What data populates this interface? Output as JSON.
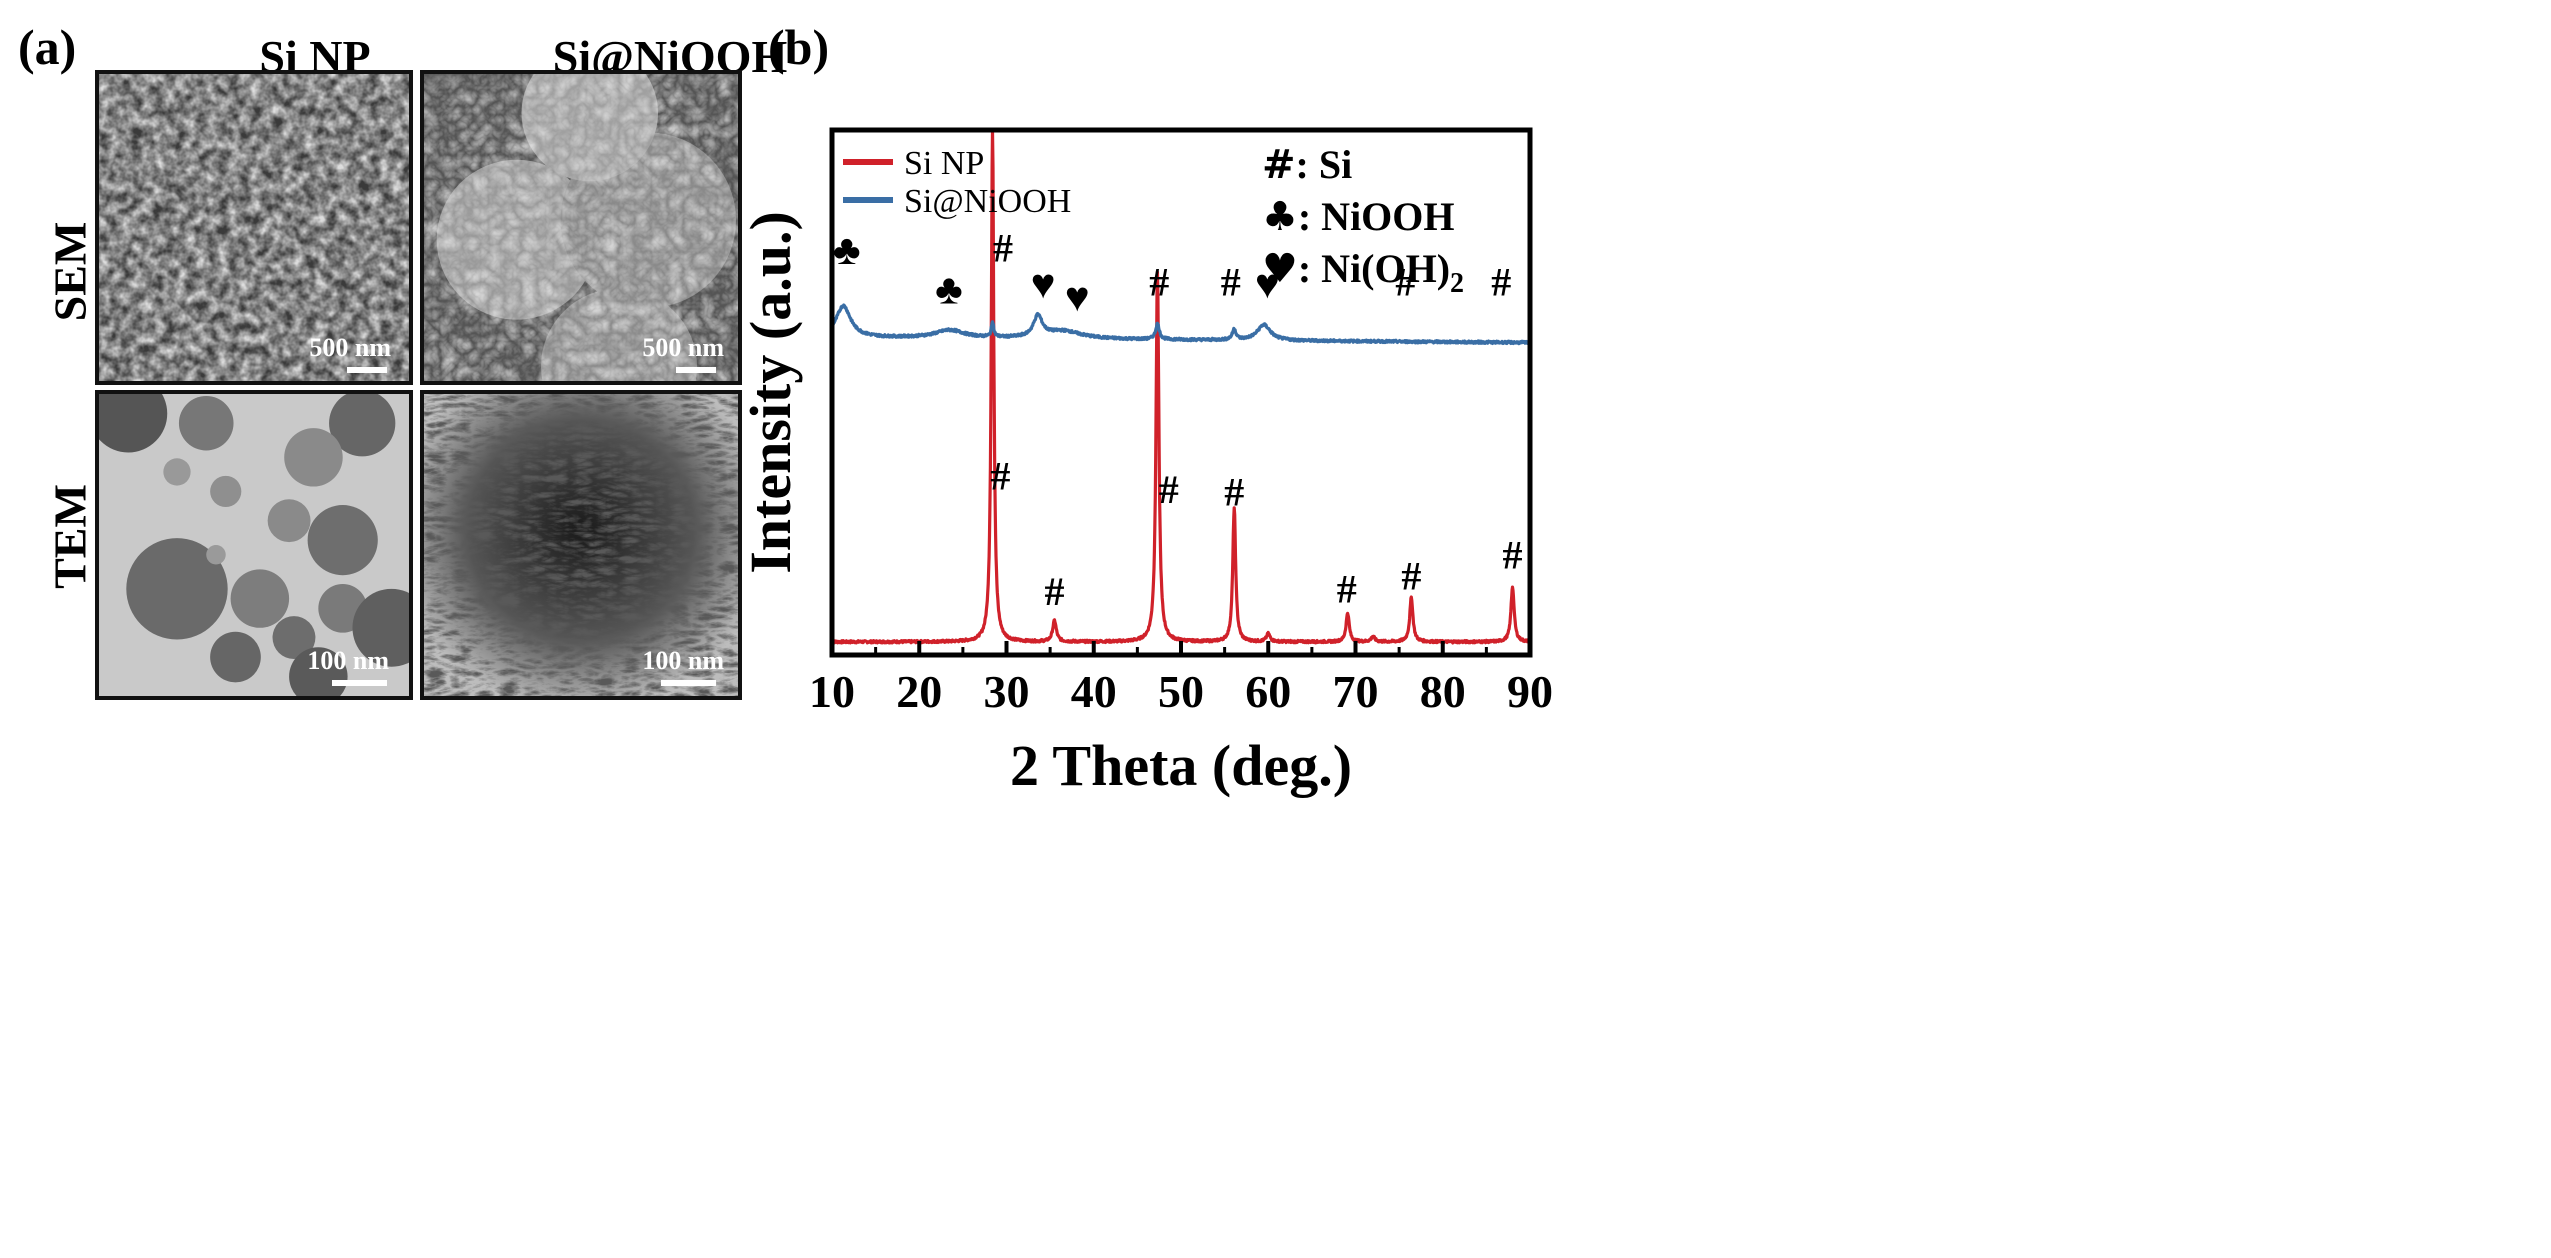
{
  "panel_a": {
    "letter": "(a)",
    "columns": [
      "Si NP",
      "Si@NiOOH"
    ],
    "rows": [
      "SEM",
      "TEM"
    ],
    "scale_bars": {
      "sem_si": "500 nm",
      "sem_niooh": "500 nm",
      "tem_si": "100 nm",
      "tem_niooh": "100 nm"
    }
  },
  "panel_b": {
    "letter": "(b)"
  },
  "colors": {
    "si_np": "#d0212a",
    "si_niooh": "#3a6ea5",
    "axis": "#000000"
  },
  "chart_data": {
    "type": "line",
    "title": "",
    "xlabel": "2 Theta (deg.)",
    "ylabel": "Intensity (a.u.)",
    "xlim": [
      10,
      90
    ],
    "ylim": [
      0,
      100
    ],
    "xticks": [
      "10",
      "20",
      "30",
      "40",
      "50",
      "60",
      "70",
      "80",
      "90"
    ],
    "legend": {
      "position": "top-left",
      "entries": [
        "Si NP",
        "Si@NiOOH"
      ]
    },
    "marker_key": [
      {
        "symbol": "#",
        "text": ": Si"
      },
      {
        "symbol": "♣",
        "text": ": NiOOH"
      },
      {
        "symbol": "♥",
        "text": ": Ni(OH)",
        "subscript": "2"
      }
    ],
    "series": [
      {
        "name": "Si NP",
        "baseline": 2.5,
        "peaks": [
          {
            "x": 28.4,
            "height": 97.5,
            "width": 0.18
          },
          {
            "x": 35.5,
            "height": 4.0,
            "width": 0.25
          },
          {
            "x": 47.3,
            "height": 70.5,
            "width": 0.2
          },
          {
            "x": 56.1,
            "height": 25.5,
            "width": 0.2
          },
          {
            "x": 60.0,
            "height": 1.5,
            "width": 0.25
          },
          {
            "x": 69.1,
            "height": 5.5,
            "width": 0.22
          },
          {
            "x": 72.0,
            "height": 1.0,
            "width": 0.25
          },
          {
            "x": 76.4,
            "height": 8.5,
            "width": 0.22
          },
          {
            "x": 88.0,
            "height": 10.5,
            "width": 0.22
          }
        ]
      },
      {
        "name": "Si@NiOOH",
        "baseline": 60.5,
        "baseline_end": 59.5,
        "peaks": [
          {
            "x": 11.3,
            "height": 6.0,
            "width": 1.0
          },
          {
            "x": 23.5,
            "height": 1.5,
            "width": 2.0
          },
          {
            "x": 28.4,
            "height": 3.0,
            "width": 0.15
          },
          {
            "x": 33.6,
            "height": 4.0,
            "width": 0.6
          },
          {
            "x": 36.5,
            "height": 1.5,
            "width": 2.5
          },
          {
            "x": 47.3,
            "height": 3.0,
            "width": 0.25
          },
          {
            "x": 56.1,
            "height": 2.0,
            "width": 0.25
          },
          {
            "x": 59.5,
            "height": 3.0,
            "width": 0.9
          }
        ]
      }
    ],
    "annotations": [
      {
        "text": "♣",
        "x": 11.7,
        "y": 74.5
      },
      {
        "text": "♣",
        "x": 23.4,
        "y": 67.0
      },
      {
        "text": "#",
        "x": 29.6,
        "y": 75.0
      },
      {
        "text": "♥",
        "x": 34.2,
        "y": 68.0
      },
      {
        "text": "♥",
        "x": 38.1,
        "y": 65.5
      },
      {
        "text": "#",
        "x": 47.5,
        "y": 68.5
      },
      {
        "text": "#",
        "x": 55.7,
        "y": 68.5
      },
      {
        "text": "♥",
        "x": 59.9,
        "y": 68.0
      },
      {
        "text": "#",
        "x": 75.7,
        "y": 68.5
      },
      {
        "text": "#",
        "x": 86.7,
        "y": 68.5
      },
      {
        "text": "#",
        "x": 29.3,
        "y": 31.5
      },
      {
        "text": "#",
        "x": 35.5,
        "y": 9.5
      },
      {
        "text": "#",
        "x": 48.6,
        "y": 29.0
      },
      {
        "text": "#",
        "x": 56.1,
        "y": 28.5
      },
      {
        "text": "#",
        "x": 69.0,
        "y": 10.0
      },
      {
        "text": "#",
        "x": 76.4,
        "y": 12.5
      },
      {
        "text": "#",
        "x": 88.0,
        "y": 16.5
      }
    ]
  }
}
